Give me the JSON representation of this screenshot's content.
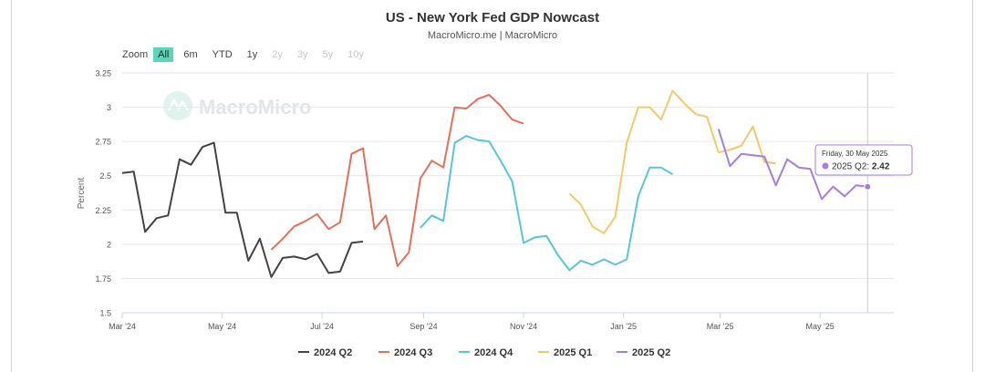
{
  "chart_data": {
    "type": "line",
    "title": "US - New York Fed GDP Nowcast",
    "subtitle": "MacroMicro.me | MacroMicro",
    "watermark": "MacroMicro",
    "ylabel": "Percent",
    "ylim": [
      1.5,
      3.25
    ],
    "yticks": [
      "3.25",
      "3",
      "2.75",
      "2.5",
      "2.25",
      "2",
      "1.75",
      "1.5"
    ],
    "xlim": [
      "2024-03-01",
      "2025-06-15"
    ],
    "xticks": [
      {
        "date": "2024-03-01",
        "label": "Mar '24"
      },
      {
        "date": "2024-05-01",
        "label": "May '24"
      },
      {
        "date": "2024-07-01",
        "label": "Jul '24"
      },
      {
        "date": "2024-09-01",
        "label": "Sep '24"
      },
      {
        "date": "2024-11-01",
        "label": "Nov '24"
      },
      {
        "date": "2025-01-01",
        "label": "Jan '25"
      },
      {
        "date": "2025-03-01",
        "label": "Mar '25"
      },
      {
        "date": "2025-05-01",
        "label": "May '25"
      }
    ],
    "zoom": {
      "label": "Zoom",
      "options": [
        "All",
        "6m",
        "YTD",
        "1y",
        "2y",
        "3y",
        "5y",
        "10y"
      ],
      "selected": "All",
      "disabled": [
        "2y",
        "3y",
        "5y",
        "10y"
      ]
    },
    "legend_position": "bottom",
    "series": [
      {
        "name": "2024 Q2",
        "color": "#434348",
        "points": [
          [
            "2024-03-01",
            2.52
          ],
          [
            "2024-03-08",
            2.53
          ],
          [
            "2024-03-15",
            2.09
          ],
          [
            "2024-03-22",
            2.19
          ],
          [
            "2024-03-29",
            2.21
          ],
          [
            "2024-04-05",
            2.62
          ],
          [
            "2024-04-12",
            2.58
          ],
          [
            "2024-04-19",
            2.71
          ],
          [
            "2024-04-26",
            2.74
          ],
          [
            "2024-05-03",
            2.23
          ],
          [
            "2024-05-10",
            2.23
          ],
          [
            "2024-05-17",
            1.88
          ],
          [
            "2024-05-24",
            2.04
          ],
          [
            "2024-05-31",
            1.76
          ],
          [
            "2024-06-07",
            1.9
          ],
          [
            "2024-06-14",
            1.91
          ],
          [
            "2024-06-21",
            1.89
          ],
          [
            "2024-06-28",
            1.93
          ],
          [
            "2024-07-05",
            1.79
          ],
          [
            "2024-07-12",
            1.8
          ],
          [
            "2024-07-19",
            2.01
          ],
          [
            "2024-07-26",
            2.02
          ]
        ]
      },
      {
        "name": "2024 Q3",
        "color": "#e4705c",
        "points": [
          [
            "2024-05-31",
            1.96
          ],
          [
            "2024-06-07",
            2.04
          ],
          [
            "2024-06-14",
            2.13
          ],
          [
            "2024-06-21",
            2.17
          ],
          [
            "2024-06-28",
            2.22
          ],
          [
            "2024-07-05",
            2.11
          ],
          [
            "2024-07-12",
            2.16
          ],
          [
            "2024-07-19",
            2.66
          ],
          [
            "2024-07-26",
            2.7
          ],
          [
            "2024-08-02",
            2.11
          ],
          [
            "2024-08-09",
            2.21
          ],
          [
            "2024-08-16",
            1.84
          ],
          [
            "2024-08-23",
            1.94
          ],
          [
            "2024-08-30",
            2.48
          ],
          [
            "2024-09-06",
            2.61
          ],
          [
            "2024-09-13",
            2.56
          ],
          [
            "2024-09-20",
            3.0
          ],
          [
            "2024-09-27",
            2.99
          ],
          [
            "2024-10-04",
            3.06
          ],
          [
            "2024-10-11",
            3.09
          ],
          [
            "2024-10-18",
            3.01
          ],
          [
            "2024-10-25",
            2.91
          ],
          [
            "2024-11-01",
            2.88
          ]
        ]
      },
      {
        "name": "2024 Q4",
        "color": "#5bc4d8",
        "points": [
          [
            "2024-08-30",
            2.12
          ],
          [
            "2024-09-06",
            2.21
          ],
          [
            "2024-09-13",
            2.17
          ],
          [
            "2024-09-20",
            2.74
          ],
          [
            "2024-09-27",
            2.79
          ],
          [
            "2024-10-04",
            2.76
          ],
          [
            "2024-10-11",
            2.75
          ],
          [
            "2024-10-18",
            2.61
          ],
          [
            "2024-10-25",
            2.46
          ],
          [
            "2024-11-01",
            2.01
          ],
          [
            "2024-11-08",
            2.05
          ],
          [
            "2024-11-15",
            2.06
          ],
          [
            "2024-11-22",
            1.92
          ],
          [
            "2024-11-29",
            1.81
          ],
          [
            "2024-12-06",
            1.88
          ],
          [
            "2024-12-13",
            1.85
          ],
          [
            "2024-12-20",
            1.89
          ],
          [
            "2024-12-27",
            1.85
          ],
          [
            "2025-01-03",
            1.89
          ],
          [
            "2025-01-10",
            2.35
          ],
          [
            "2025-01-17",
            2.56
          ],
          [
            "2025-01-24",
            2.56
          ],
          [
            "2025-01-31",
            2.51
          ]
        ]
      },
      {
        "name": "2025 Q1",
        "color": "#f4c96a",
        "points": [
          [
            "2024-11-29",
            2.37
          ],
          [
            "2024-12-06",
            2.29
          ],
          [
            "2024-12-13",
            2.13
          ],
          [
            "2024-12-20",
            2.08
          ],
          [
            "2024-12-27",
            2.2
          ],
          [
            "2025-01-03",
            2.74
          ],
          [
            "2025-01-10",
            3.0
          ],
          [
            "2025-01-17",
            3.0
          ],
          [
            "2025-01-24",
            2.91
          ],
          [
            "2025-01-31",
            3.12
          ],
          [
            "2025-02-07",
            3.03
          ],
          [
            "2025-02-14",
            2.95
          ],
          [
            "2025-02-21",
            2.93
          ],
          [
            "2025-02-28",
            2.67
          ],
          [
            "2025-03-07",
            2.69
          ],
          [
            "2025-03-14",
            2.72
          ],
          [
            "2025-03-21",
            2.86
          ],
          [
            "2025-03-28",
            2.6
          ],
          [
            "2025-04-04",
            2.59
          ]
        ]
      },
      {
        "name": "2025 Q2",
        "color": "#a57ee0",
        "points": [
          [
            "2025-02-28",
            2.84
          ],
          [
            "2025-03-07",
            2.57
          ],
          [
            "2025-03-14",
            2.66
          ],
          [
            "2025-03-21",
            2.65
          ],
          [
            "2025-03-28",
            2.64
          ],
          [
            "2025-04-04",
            2.43
          ],
          [
            "2025-04-11",
            2.62
          ],
          [
            "2025-04-18",
            2.56
          ],
          [
            "2025-04-25",
            2.55
          ],
          [
            "2025-05-02",
            2.33
          ],
          [
            "2025-05-09",
            2.42
          ],
          [
            "2025-05-16",
            2.35
          ],
          [
            "2025-05-23",
            2.43
          ],
          [
            "2025-05-30",
            2.42
          ]
        ]
      }
    ],
    "tooltip": {
      "date": "Friday, 30 May 2025",
      "series": "2025 Q2",
      "sep": ":",
      "value": "2.42",
      "color": "#a57ee0"
    }
  }
}
